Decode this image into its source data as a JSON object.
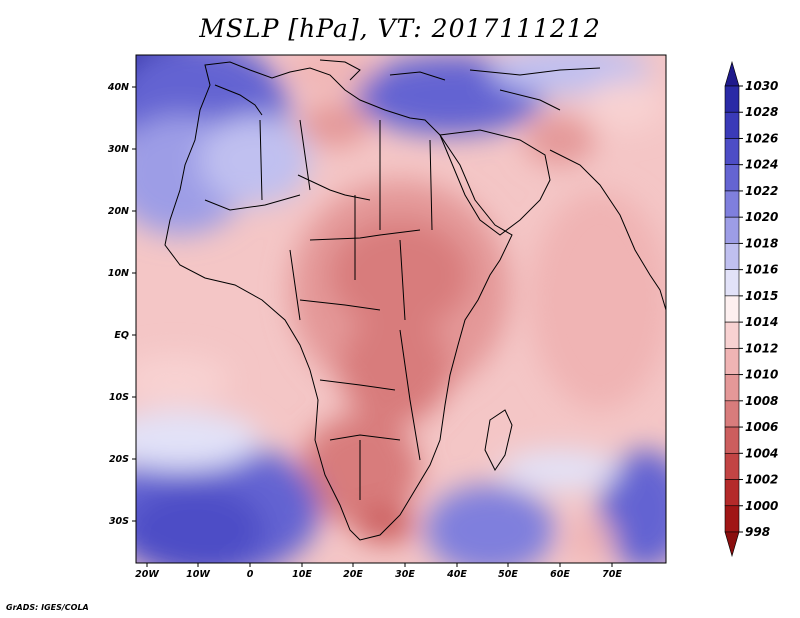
{
  "title": "MSLP [hPa], VT: 2017111212",
  "credit": "GrADS: IGES/COLA",
  "lon_ticks": [
    "20W",
    "10W",
    "0",
    "10E",
    "20E",
    "30E",
    "40E",
    "50E",
    "60E",
    "70E"
  ],
  "lat_ticks": [
    "40N",
    "30N",
    "20N",
    "10N",
    "EQ",
    "10S",
    "20S",
    "30S"
  ],
  "colorbar": {
    "levels": [
      "1030",
      "1028",
      "1026",
      "1024",
      "1022",
      "1020",
      "1018",
      "1016",
      "1015",
      "1014",
      "1012",
      "1010",
      "1008",
      "1006",
      "1004",
      "1002",
      "1000",
      "998"
    ],
    "colors": [
      "#1f1a8c",
      "#2a2aa6",
      "#3a3ab8",
      "#4d4dc6",
      "#6464d2",
      "#7f7fdd",
      "#9d9de6",
      "#c0c0f0",
      "#e2e2f8",
      "#fdf0f0",
      "#f8d2d2",
      "#f0b4b4",
      "#e49898",
      "#d87c7c",
      "#cc5e5e",
      "#c24444",
      "#b42a2a",
      "#a01616",
      "#8a0e0e"
    ]
  }
}
